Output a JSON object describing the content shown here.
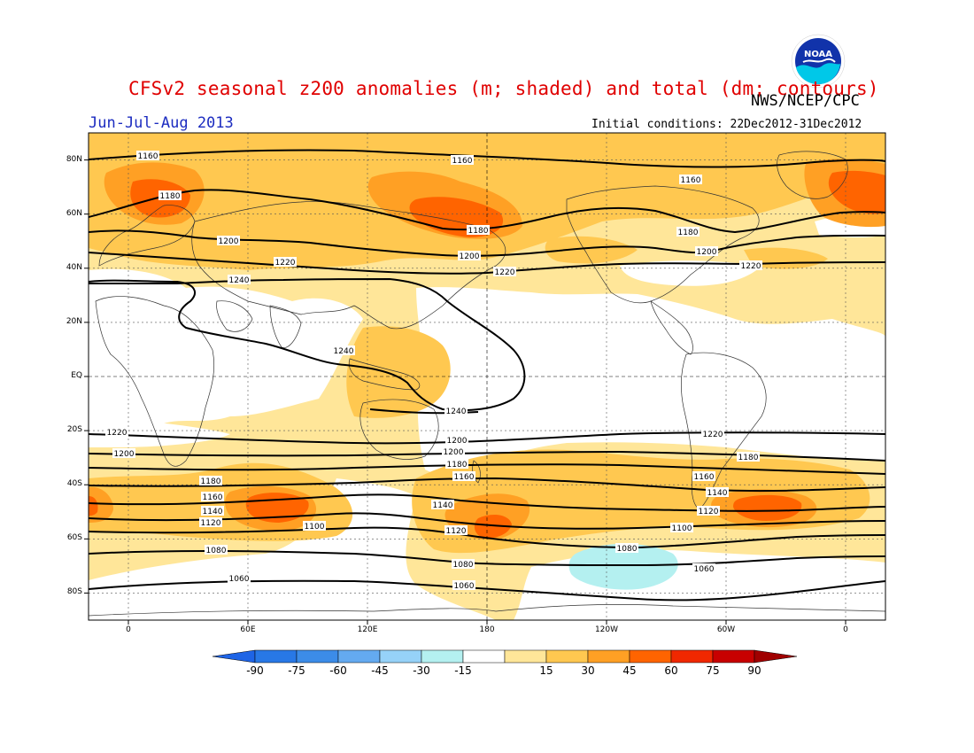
{
  "header": {
    "title": "CFSv2 seasonal z200 anomalies (m; shaded) and total (dm; contours)",
    "agency": "NWS/NCEP/CPC",
    "period": "Jun-Jul-Aug 2013",
    "initial_conditions": "Initial conditions: 22Dec2012-31Dec2012",
    "logo_text": "NOAA"
  },
  "map": {
    "projection": "cylindrical equidistant",
    "lon_range": [
      -20,
      380
    ],
    "lat_range": [
      -90,
      90
    ],
    "lat_ticks": [
      {
        "label": "80N",
        "lat": 80
      },
      {
        "label": "60N",
        "lat": 60
      },
      {
        "label": "40N",
        "lat": 40
      },
      {
        "label": "20N",
        "lat": 20
      },
      {
        "label": "EQ",
        "lat": 0
      },
      {
        "label": "20S",
        "lat": -20
      },
      {
        "label": "40S",
        "lat": -40
      },
      {
        "label": "60S",
        "lat": -60
      },
      {
        "label": "80S",
        "lat": -80
      }
    ],
    "lon_ticks": [
      {
        "label": "0",
        "lon": 0
      },
      {
        "label": "60E",
        "lon": 60
      },
      {
        "label": "120E",
        "lon": 120
      },
      {
        "label": "180",
        "lon": 180
      },
      {
        "label": "120W",
        "lon": 240
      },
      {
        "label": "60W",
        "lon": 300
      },
      {
        "label": "0",
        "lon": 360
      }
    ],
    "contour_labels": [
      "1160",
      "1160",
      "1160",
      "1180",
      "1180",
      "1180",
      "1200",
      "1200",
      "1200",
      "1220",
      "1220",
      "1220",
      "1240",
      "1240",
      "1240",
      "1220",
      "1220",
      "1200",
      "1200",
      "1200",
      "1180",
      "1180",
      "1180",
      "1160",
      "1160",
      "1160",
      "1140",
      "1140",
      "1140",
      "1120",
      "1120",
      "1120",
      "1100",
      "1100",
      "1080",
      "1080",
      "1080",
      "1060",
      "1060",
      "1060"
    ]
  },
  "colorbar": {
    "unit": "m",
    "labels": [
      "-90",
      "-75",
      "-60",
      "-45",
      "-30",
      "-15",
      "15",
      "30",
      "45",
      "60",
      "75",
      "90"
    ],
    "colors": [
      "#1e64e6",
      "#2878e6",
      "#3c8ce8",
      "#64aaf0",
      "#96d2f8",
      "#b4f0f0",
      "#ffffff",
      "#ffe699",
      "#ffc850",
      "#ffa024",
      "#ff6400",
      "#f02800",
      "#c80000",
      "#a00000"
    ]
  },
  "anomaly_colors": {
    "a15": "#ffe699",
    "a30": "#ffc850",
    "a45": "#ffa024",
    "a60": "#ff6400",
    "neg15": "#b4f0f0"
  }
}
